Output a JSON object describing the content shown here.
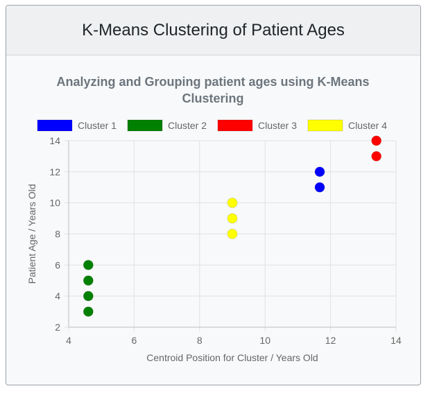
{
  "card": {
    "title": "K-Means Clustering of Patient Ages"
  },
  "chart_data": {
    "type": "scatter",
    "title": "Analyzing and Grouping patient ages using K-Means Clustering",
    "title_lines": [
      "Analyzing and Grouping patient ages using K-Means",
      "Clustering"
    ],
    "xlabel": "Centroid Position for Cluster / Years Old",
    "ylabel": "Patient Age / Years Old",
    "xlim": [
      4,
      14
    ],
    "ylim": [
      2,
      14
    ],
    "xticks": [
      4,
      6,
      8,
      10,
      12,
      14
    ],
    "yticks": [
      2,
      4,
      6,
      8,
      10,
      12,
      14
    ],
    "grid": true,
    "legend_position": "top",
    "series": [
      {
        "name": "Cluster 1",
        "color": "#0000ff",
        "points": [
          [
            11.67,
            12
          ],
          [
            11.67,
            11
          ]
        ]
      },
      {
        "name": "Cluster 2",
        "color": "#008000",
        "points": [
          [
            4.6,
            6
          ],
          [
            4.6,
            5
          ],
          [
            4.6,
            4
          ],
          [
            4.6,
            3
          ]
        ]
      },
      {
        "name": "Cluster 3",
        "color": "#ff0000",
        "points": [
          [
            13.4,
            14
          ],
          [
            13.4,
            13
          ]
        ]
      },
      {
        "name": "Cluster 4",
        "color": "#ffff00",
        "points": [
          [
            9.0,
            10
          ],
          [
            9.0,
            9
          ],
          [
            9.0,
            8
          ]
        ]
      }
    ]
  }
}
